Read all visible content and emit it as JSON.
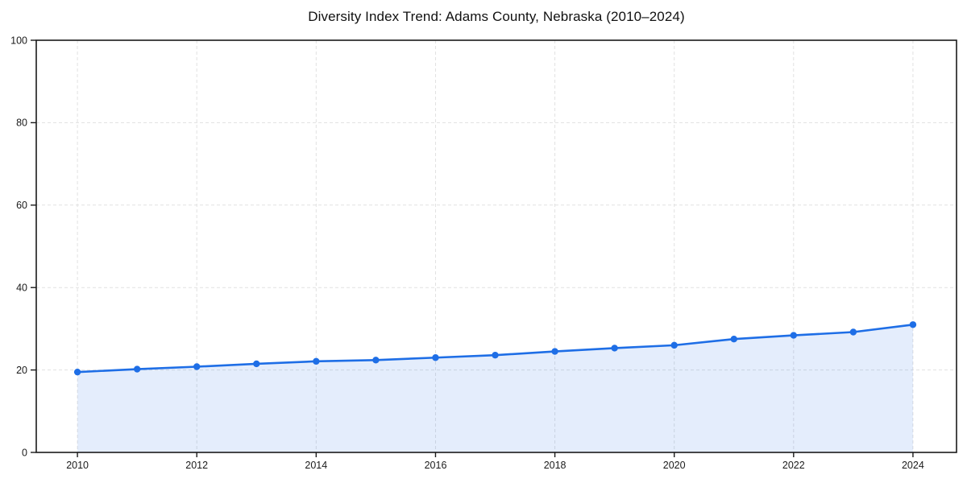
{
  "chart_data": {
    "type": "line",
    "title": "Diversity Index Trend: Adams County, Nebraska (2010–2024)",
    "x": [
      2010,
      2011,
      2012,
      2013,
      2014,
      2015,
      2016,
      2017,
      2018,
      2019,
      2020,
      2021,
      2022,
      2023,
      2024
    ],
    "values": [
      19.5,
      20.2,
      20.8,
      21.5,
      22.1,
      22.4,
      23.0,
      23.6,
      24.5,
      25.3,
      26.0,
      27.5,
      28.4,
      29.2,
      31.0
    ],
    "xlabel": "",
    "ylabel": "",
    "ylim": [
      0,
      100
    ],
    "yticks": [
      0,
      20,
      40,
      60,
      80,
      100
    ],
    "xticks": [
      2010,
      2012,
      2014,
      2016,
      2018,
      2020,
      2022,
      2024
    ],
    "grid": true,
    "grid_style": "dashed",
    "legend": false,
    "line_color": "#1e6ee6",
    "marker_color": "#1e6ee6",
    "fill_color": "rgba(30, 110, 230, 0.12)",
    "axis_color": "#1a1a1a",
    "grid_color": "#e1e1e1",
    "tick_label_color": "#1a1a1a",
    "title_color": "#111111"
  }
}
